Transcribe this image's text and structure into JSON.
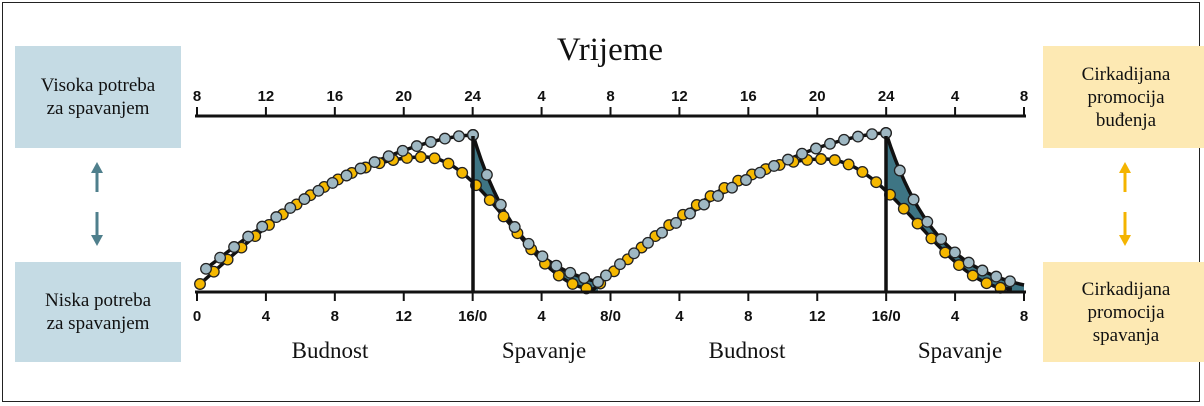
{
  "title": "Vrijeme",
  "left_boxes": {
    "high": [
      "Visoka potreba",
      "za spavanjem"
    ],
    "low": [
      "Niska potreba",
      "za spavanjem"
    ]
  },
  "right_boxes": {
    "wake": [
      "Cirkadijana",
      "promocija",
      "buđenja"
    ],
    "sleep": [
      "Cirkadijana",
      "promocija",
      "spavanja"
    ]
  },
  "top_axis_ticks": [
    "8",
    "12",
    "16",
    "20",
    "24",
    "4",
    "8",
    "12",
    "16",
    "20",
    "24",
    "4",
    "8"
  ],
  "bottom_axis_ticks": [
    "0",
    "4",
    "8",
    "12",
    "16/0",
    "4",
    "8/0",
    "4",
    "8",
    "12",
    "16/0",
    "4",
    "8"
  ],
  "phase_labels": [
    "Budnost",
    "Spavanje",
    "Budnost",
    "Spavanje"
  ],
  "colors": {
    "box_blue": "#c5dbe4",
    "box_yellow": "#fde9b3",
    "arrow_teal": "#4f7f8c",
    "arrow_gold": "#f4b400",
    "dot_blue": "#9fb8c3",
    "dot_yellow": "#f5b800",
    "sleep_fill": "#3e7584"
  }
}
